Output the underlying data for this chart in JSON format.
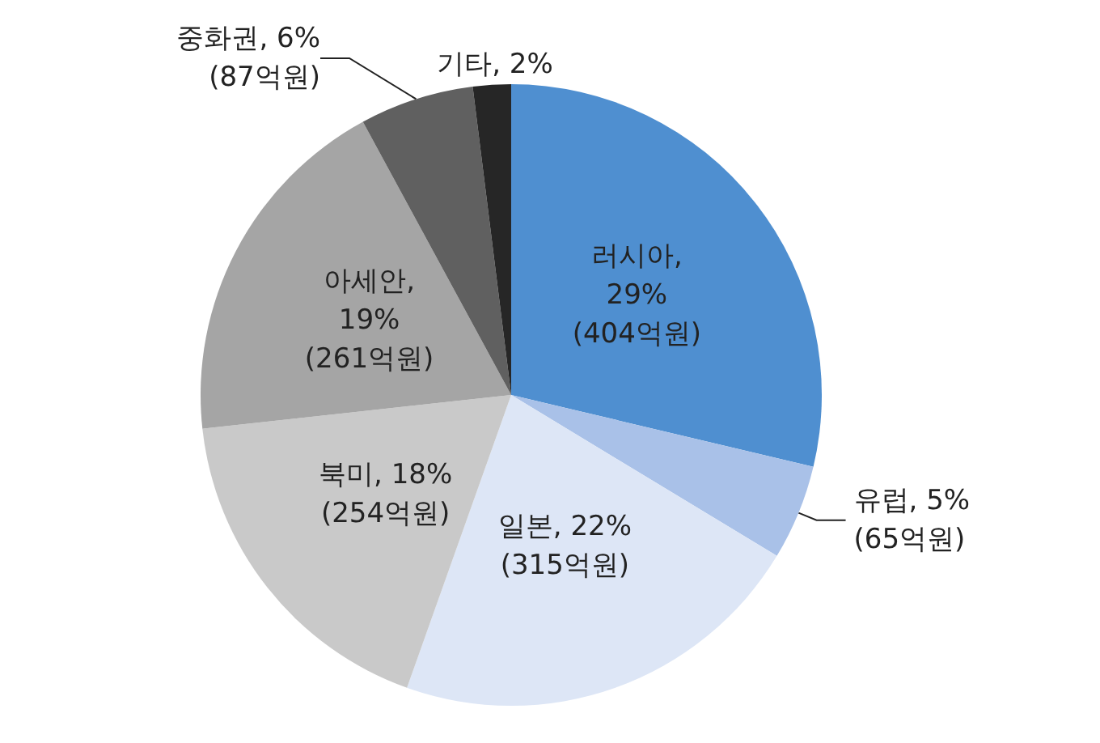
{
  "chart_data": {
    "type": "pie",
    "categories": [
      "러시아",
      "유럽",
      "일본",
      "북미",
      "아세안",
      "중화권",
      "기타"
    ],
    "values": [
      29,
      5,
      22,
      18,
      19,
      6,
      2
    ],
    "colors": [
      "#4f8fd0",
      "#a9c1e8",
      "#dde6f6",
      "#c9c9c9",
      "#a5a5a5",
      "#606060",
      "#262626"
    ],
    "value_labels": [
      ",\n29%\n(404억원)",
      ", 5%\n(65억원)",
      ", 22%\n(315억원)",
      ", 18%\n(254억원)",
      ",\n19%\n(261억원)",
      ", 6%\n(87억원)",
      ", 2%"
    ]
  }
}
